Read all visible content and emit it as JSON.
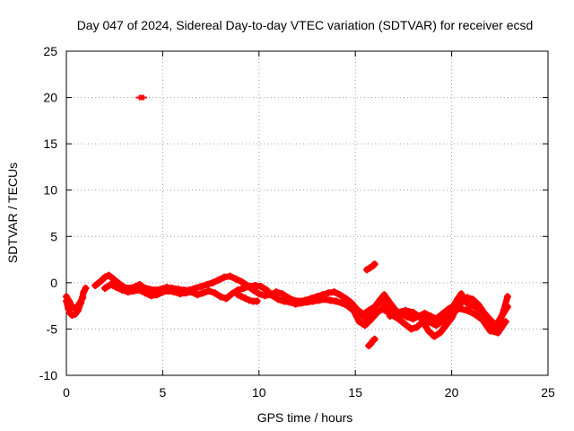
{
  "chart_data": {
    "type": "scatter",
    "title": "Day 047 of 2024, Sidereal Day-to-day VTEC variation (SDTVAR) for receiver ecsd",
    "xlabel": "GPS time / hours",
    "ylabel": "SDTVAR / TECUs",
    "xlim": [
      0,
      25
    ],
    "ylim": [
      -10,
      25
    ],
    "xticks": [
      0,
      5,
      10,
      15,
      20,
      25
    ],
    "yticks": [
      -10,
      -5,
      0,
      5,
      10,
      15,
      20,
      25
    ],
    "xtick_labels": [
      "0",
      "5",
      "10",
      "15",
      "20",
      "25"
    ],
    "ytick_labels": [
      "-10",
      "-5",
      "0",
      "5",
      "10",
      "15",
      "20",
      "25"
    ],
    "grid": true,
    "marker_color": "#ff0000",
    "series": [
      {
        "name": "SDTVAR",
        "segments": [
          [
            [
              0.0,
              -2.0
            ],
            [
              0.1,
              -2.8
            ],
            [
              0.2,
              -3.3
            ],
            [
              0.3,
              -3.5
            ],
            [
              0.45,
              -3.4
            ],
            [
              0.6,
              -3.0
            ],
            [
              0.75,
              -2.2
            ],
            [
              0.9,
              -1.0
            ],
            [
              1.0,
              -0.6
            ]
          ],
          [
            [
              0.0,
              -1.5
            ],
            [
              0.15,
              -2.0
            ],
            [
              0.3,
              -2.6
            ],
            [
              0.5,
              -2.8
            ],
            [
              0.7,
              -2.2
            ],
            [
              0.85,
              -1.6
            ]
          ],
          [
            [
              1.5,
              -0.3
            ],
            [
              1.8,
              0.2
            ],
            [
              2.0,
              0.6
            ],
            [
              2.2,
              0.8
            ],
            [
              2.5,
              0.3
            ],
            [
              2.8,
              -0.2
            ],
            [
              3.0,
              -0.5
            ],
            [
              3.3,
              -0.6
            ],
            [
              3.6,
              -0.4
            ],
            [
              3.8,
              -0.2
            ],
            [
              4.0,
              -0.5
            ],
            [
              4.3,
              -0.7
            ],
            [
              4.6,
              -0.8
            ],
            [
              4.9,
              -0.7
            ],
            [
              5.2,
              -0.5
            ],
            [
              5.5,
              -0.6
            ],
            [
              5.8,
              -0.7
            ],
            [
              6.1,
              -0.8
            ],
            [
              6.4,
              -0.8
            ],
            [
              6.7,
              -0.6
            ],
            [
              7.0,
              -0.4
            ],
            [
              7.3,
              -0.2
            ],
            [
              7.6,
              0.0
            ],
            [
              7.9,
              0.3
            ],
            [
              8.2,
              0.6
            ],
            [
              8.5,
              0.7
            ],
            [
              8.8,
              0.4
            ],
            [
              9.1,
              0.1
            ],
            [
              9.4,
              -0.3
            ],
            [
              9.7,
              -0.8
            ],
            [
              10.0,
              -1.2
            ],
            [
              10.3,
              -1.4
            ],
            [
              10.6,
              -1.3
            ],
            [
              10.9,
              -1.0
            ],
            [
              11.2,
              -1.2
            ],
            [
              11.5,
              -1.6
            ],
            [
              11.8,
              -1.9
            ],
            [
              12.1,
              -2.0
            ],
            [
              12.4,
              -1.9
            ],
            [
              12.7,
              -1.7
            ],
            [
              13.0,
              -1.5
            ],
            [
              13.3,
              -1.3
            ],
            [
              13.6,
              -1.1
            ],
            [
              13.9,
              -1.0
            ],
            [
              14.2,
              -1.3
            ],
            [
              14.5,
              -1.7
            ],
            [
              14.8,
              -2.2
            ],
            [
              15.1,
              -2.9
            ],
            [
              15.4,
              -3.4
            ],
            [
              15.7,
              -3.0
            ],
            [
              16.0,
              -2.6
            ],
            [
              16.3,
              -1.8
            ],
            [
              16.5,
              -1.3
            ],
            [
              16.8,
              -2.2
            ],
            [
              17.1,
              -3.0
            ],
            [
              17.4,
              -3.4
            ],
            [
              17.7,
              -3.7
            ],
            [
              18.0,
              -3.9
            ],
            [
              18.3,
              -3.6
            ],
            [
              18.6,
              -3.3
            ],
            [
              18.9,
              -3.6
            ],
            [
              19.2,
              -3.9
            ],
            [
              19.5,
              -3.4
            ],
            [
              19.8,
              -2.9
            ],
            [
              20.1,
              -2.5
            ],
            [
              20.3,
              -1.8
            ],
            [
              20.5,
              -1.2
            ],
            [
              20.7,
              -2.0
            ],
            [
              20.9,
              -2.4
            ],
            [
              21.2,
              -2.6
            ],
            [
              21.5,
              -3.0
            ],
            [
              21.8,
              -3.8
            ],
            [
              22.1,
              -4.6
            ],
            [
              22.3,
              -5.0
            ],
            [
              22.5,
              -4.2
            ],
            [
              22.7,
              -3.0
            ],
            [
              22.9,
              -1.5
            ]
          ],
          [
            [
              2.0,
              -0.6
            ],
            [
              2.3,
              -0.2
            ],
            [
              2.6,
              -0.5
            ],
            [
              2.9,
              -0.8
            ],
            [
              3.2,
              -1.0
            ],
            [
              3.5,
              -0.9
            ],
            [
              3.8,
              -0.8
            ],
            [
              4.1,
              -1.1
            ],
            [
              4.4,
              -1.4
            ],
            [
              4.7,
              -1.3
            ],
            [
              5.0,
              -1.0
            ],
            [
              5.3,
              -0.9
            ],
            [
              5.6,
              -1.0
            ],
            [
              5.9,
              -1.2
            ],
            [
              6.2,
              -1.1
            ],
            [
              6.5,
              -1.0
            ],
            [
              6.8,
              -1.3
            ],
            [
              7.1,
              -1.1
            ],
            [
              7.4,
              -0.9
            ],
            [
              7.7,
              -1.1
            ],
            [
              8.0,
              -1.5
            ],
            [
              8.3,
              -1.7
            ],
            [
              8.6,
              -1.2
            ],
            [
              8.9,
              -0.8
            ],
            [
              9.2,
              -0.6
            ],
            [
              9.5,
              -0.4
            ],
            [
              9.8,
              -0.3
            ],
            [
              10.1,
              -0.4
            ],
            [
              10.4,
              -0.8
            ],
            [
              10.7,
              -1.4
            ],
            [
              11.0,
              -1.8
            ],
            [
              11.3,
              -2.0
            ],
            [
              11.6,
              -2.1
            ],
            [
              11.9,
              -2.3
            ],
            [
              12.2,
              -2.2
            ],
            [
              12.5,
              -2.1
            ],
            [
              12.8,
              -2.0
            ],
            [
              13.1,
              -1.9
            ],
            [
              13.4,
              -1.8
            ],
            [
              13.7,
              -1.9
            ],
            [
              14.0,
              -2.0
            ],
            [
              14.3,
              -2.2
            ],
            [
              14.6,
              -2.5
            ],
            [
              14.9,
              -3.0
            ],
            [
              15.2,
              -4.2
            ],
            [
              15.5,
              -4.6
            ],
            [
              15.8,
              -4.0
            ],
            [
              16.1,
              -3.3
            ],
            [
              16.4,
              -2.8
            ],
            [
              16.7,
              -3.2
            ],
            [
              17.0,
              -3.6
            ],
            [
              17.3,
              -4.0
            ],
            [
              17.6,
              -4.5
            ],
            [
              17.9,
              -5.0
            ],
            [
              18.2,
              -4.8
            ],
            [
              18.5,
              -4.2
            ],
            [
              18.8,
              -5.2
            ],
            [
              19.1,
              -5.8
            ],
            [
              19.4,
              -5.4
            ],
            [
              19.7,
              -4.6
            ],
            [
              20.0,
              -3.8
            ],
            [
              20.2,
              -3.0
            ],
            [
              20.5,
              -2.2
            ],
            [
              20.8,
              -1.6
            ],
            [
              21.1,
              -1.8
            ],
            [
              21.4,
              -2.4
            ],
            [
              21.7,
              -3.3
            ],
            [
              22.0,
              -4.0
            ],
            [
              22.3,
              -4.6
            ],
            [
              22.6,
              -3.6
            ],
            [
              22.9,
              -2.6
            ]
          ],
          [
            [
              16.8,
              -3.6
            ],
            [
              17.2,
              -3.2
            ],
            [
              17.6,
              -3.0
            ],
            [
              18.0,
              -3.2
            ],
            [
              18.4,
              -3.8
            ],
            [
              18.8,
              -4.2
            ],
            [
              19.2,
              -4.6
            ],
            [
              19.6,
              -4.0
            ],
            [
              20.0,
              -3.2
            ],
            [
              20.4,
              -2.8
            ],
            [
              20.8,
              -3.0
            ],
            [
              21.2,
              -3.4
            ],
            [
              21.6,
              -4.0
            ],
            [
              22.0,
              -5.2
            ],
            [
              22.4,
              -5.4
            ],
            [
              22.8,
              -4.2
            ]
          ],
          [
            [
              14.9,
              -2.6
            ],
            [
              15.2,
              -3.2
            ],
            [
              15.5,
              -3.8
            ],
            [
              15.8,
              -3.2
            ],
            [
              16.1,
              -2.4
            ],
            [
              16.4,
              -2.0
            ],
            [
              16.7,
              -2.6
            ],
            [
              17.0,
              -3.0
            ]
          ],
          [
            [
              15.6,
              1.4
            ],
            [
              15.75,
              1.6
            ],
            [
              15.9,
              1.8
            ],
            [
              16.0,
              2.0
            ]
          ],
          [
            [
              15.7,
              -6.8
            ],
            [
              15.8,
              -6.6
            ],
            [
              15.9,
              -6.3
            ],
            [
              16.0,
              -6.1
            ]
          ],
          [
            [
              8.9,
              -1.3
            ],
            [
              9.1,
              -1.5
            ],
            [
              9.3,
              -1.7
            ],
            [
              9.5,
              -1.9
            ],
            [
              9.7,
              -2.0
            ],
            [
              9.9,
              -2.0
            ]
          ]
        ],
        "isolated": [
          [
            3.8,
            20.0
          ],
          [
            3.9,
            20.0
          ],
          [
            4.0,
            20.0
          ]
        ]
      }
    ]
  }
}
